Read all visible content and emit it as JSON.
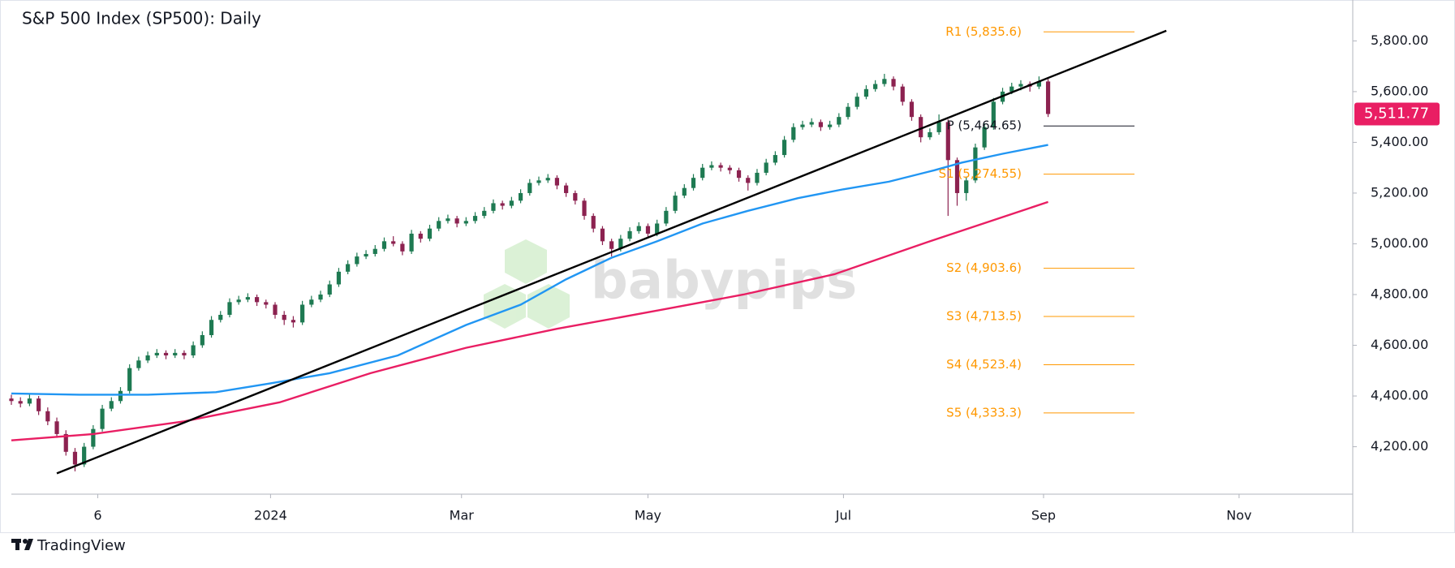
{
  "chart_data": {
    "type": "candlestick",
    "title": "S&P 500 Index (SP500): Daily",
    "watermark": "babypips",
    "footer": "TradingView",
    "up_color": "#1e7a52",
    "down_color": "#8c2250",
    "xlim": [
      0,
      295
    ],
    "xticks": [
      {
        "value": 19,
        "label": "6"
      },
      {
        "value": 57,
        "label": "2024"
      },
      {
        "value": 99,
        "label": "Mar"
      },
      {
        "value": 140,
        "label": "May"
      },
      {
        "value": 183,
        "label": "Jul"
      },
      {
        "value": 227,
        "label": "Sep"
      },
      {
        "value": 270,
        "label": "Nov"
      }
    ],
    "ylim": [
      4013,
      5942
    ],
    "yticks": [
      {
        "value": 4200,
        "label": "4,200.00"
      },
      {
        "value": 4400,
        "label": "4,400.00"
      },
      {
        "value": 4600,
        "label": "4,600.00"
      },
      {
        "value": 4800,
        "label": "4,800.00"
      },
      {
        "value": 5000,
        "label": "5,000.00"
      },
      {
        "value": 5200,
        "label": "5,200.00"
      },
      {
        "value": 5400,
        "label": "5,400.00"
      },
      {
        "value": 5600,
        "label": "5,600.00"
      },
      {
        "value": 5800,
        "label": "5,800.00"
      }
    ],
    "last_price": {
      "value": 5511.77,
      "label": "5,511.77"
    },
    "last_price_color": "#e91e63",
    "x": [
      0,
      2,
      4,
      6,
      8,
      10,
      12,
      14,
      16,
      18,
      20,
      22,
      24,
      26,
      28,
      30,
      32,
      34,
      36,
      38,
      40,
      42,
      44,
      46,
      48,
      50,
      52,
      54,
      56,
      58,
      60,
      62,
      64,
      66,
      68,
      70,
      72,
      74,
      76,
      78,
      80,
      82,
      84,
      86,
      88,
      90,
      92,
      94,
      96,
      98,
      100,
      102,
      104,
      106,
      108,
      110,
      112,
      114,
      116,
      118,
      120,
      122,
      124,
      126,
      128,
      130,
      132,
      134,
      136,
      138,
      140,
      142,
      144,
      146,
      148,
      150,
      152,
      154,
      156,
      158,
      160,
      162,
      164,
      166,
      168,
      170,
      172,
      174,
      176,
      178,
      180,
      182,
      184,
      186,
      188,
      190,
      192,
      194,
      196,
      198,
      200,
      202,
      204,
      206,
      208,
      210,
      212,
      214,
      216,
      218,
      220,
      222,
      224,
      226,
      228
    ],
    "ohlc": [
      [
        4390,
        4405,
        4365,
        4380
      ],
      [
        4380,
        4395,
        4355,
        4370
      ],
      [
        4370,
        4410,
        4360,
        4390
      ],
      [
        4390,
        4400,
        4325,
        4340
      ],
      [
        4340,
        4355,
        4285,
        4300
      ],
      [
        4300,
        4315,
        4235,
        4250
      ],
      [
        4250,
        4265,
        4165,
        4180
      ],
      [
        4180,
        4195,
        4103,
        4130
      ],
      [
        4130,
        4215,
        4120,
        4200
      ],
      [
        4200,
        4285,
        4190,
        4270
      ],
      [
        4270,
        4365,
        4260,
        4350
      ],
      [
        4350,
        4395,
        4340,
        4380
      ],
      [
        4380,
        4435,
        4370,
        4420
      ],
      [
        4420,
        4525,
        4410,
        4510
      ],
      [
        4510,
        4555,
        4500,
        4540
      ],
      [
        4540,
        4575,
        4530,
        4560
      ],
      [
        4560,
        4585,
        4550,
        4570
      ],
      [
        4570,
        4580,
        4545,
        4560
      ],
      [
        4560,
        4585,
        4550,
        4570
      ],
      [
        4570,
        4580,
        4545,
        4560
      ],
      [
        4560,
        4615,
        4550,
        4600
      ],
      [
        4600,
        4655,
        4590,
        4640
      ],
      [
        4640,
        4715,
        4630,
        4700
      ],
      [
        4700,
        4735,
        4690,
        4720
      ],
      [
        4720,
        4785,
        4710,
        4770
      ],
      [
        4770,
        4795,
        4760,
        4780
      ],
      [
        4780,
        4805,
        4770,
        4790
      ],
      [
        4790,
        4800,
        4755,
        4770
      ],
      [
        4770,
        4780,
        4745,
        4760
      ],
      [
        4760,
        4770,
        4705,
        4720
      ],
      [
        4720,
        4735,
        4680,
        4700
      ],
      [
        4700,
        4715,
        4670,
        4690
      ],
      [
        4690,
        4775,
        4680,
        4760
      ],
      [
        4760,
        4795,
        4750,
        4780
      ],
      [
        4780,
        4815,
        4770,
        4800
      ],
      [
        4800,
        4855,
        4790,
        4840
      ],
      [
        4840,
        4905,
        4830,
        4890
      ],
      [
        4890,
        4935,
        4880,
        4920
      ],
      [
        4920,
        4965,
        4910,
        4950
      ],
      [
        4950,
        4975,
        4940,
        4960
      ],
      [
        4960,
        4995,
        4950,
        4980
      ],
      [
        4980,
        5025,
        4970,
        5010
      ],
      [
        5010,
        5030,
        4990,
        5000
      ],
      [
        5000,
        5010,
        4955,
        4970
      ],
      [
        4970,
        5055,
        4960,
        5040
      ],
      [
        5040,
        5050,
        5005,
        5020
      ],
      [
        5020,
        5075,
        5010,
        5060
      ],
      [
        5060,
        5105,
        5050,
        5090
      ],
      [
        5090,
        5115,
        5080,
        5100
      ],
      [
        5100,
        5110,
        5065,
        5080
      ],
      [
        5080,
        5105,
        5070,
        5090
      ],
      [
        5090,
        5125,
        5080,
        5110
      ],
      [
        5110,
        5145,
        5100,
        5130
      ],
      [
        5130,
        5175,
        5120,
        5160
      ],
      [
        5160,
        5170,
        5135,
        5150
      ],
      [
        5150,
        5185,
        5140,
        5170
      ],
      [
        5170,
        5215,
        5160,
        5200
      ],
      [
        5200,
        5255,
        5190,
        5240
      ],
      [
        5240,
        5265,
        5230,
        5250
      ],
      [
        5250,
        5275,
        5240,
        5260
      ],
      [
        5260,
        5270,
        5215,
        5230
      ],
      [
        5230,
        5240,
        5185,
        5200
      ],
      [
        5200,
        5210,
        5155,
        5170
      ],
      [
        5170,
        5180,
        5095,
        5110
      ],
      [
        5110,
        5120,
        5045,
        5060
      ],
      [
        5060,
        5070,
        4995,
        5010
      ],
      [
        5010,
        5020,
        4950,
        4980
      ],
      [
        4980,
        5035,
        4970,
        5020
      ],
      [
        5020,
        5065,
        5010,
        5050
      ],
      [
        5050,
        5085,
        5040,
        5070
      ],
      [
        5070,
        5080,
        5025,
        5040
      ],
      [
        5040,
        5095,
        5030,
        5080
      ],
      [
        5080,
        5145,
        5070,
        5130
      ],
      [
        5130,
        5205,
        5120,
        5190
      ],
      [
        5190,
        5235,
        5180,
        5220
      ],
      [
        5220,
        5275,
        5210,
        5260
      ],
      [
        5260,
        5315,
        5250,
        5300
      ],
      [
        5300,
        5325,
        5290,
        5310
      ],
      [
        5310,
        5320,
        5285,
        5300
      ],
      [
        5300,
        5310,
        5275,
        5290
      ],
      [
        5290,
        5300,
        5245,
        5260
      ],
      [
        5260,
        5270,
        5210,
        5240
      ],
      [
        5240,
        5295,
        5230,
        5280
      ],
      [
        5280,
        5335,
        5270,
        5320
      ],
      [
        5320,
        5365,
        5310,
        5350
      ],
      [
        5350,
        5425,
        5340,
        5410
      ],
      [
        5410,
        5475,
        5400,
        5460
      ],
      [
        5460,
        5485,
        5450,
        5470
      ],
      [
        5470,
        5495,
        5460,
        5480
      ],
      [
        5480,
        5490,
        5445,
        5460
      ],
      [
        5460,
        5485,
        5450,
        5470
      ],
      [
        5470,
        5515,
        5460,
        5500
      ],
      [
        5500,
        5555,
        5490,
        5540
      ],
      [
        5540,
        5595,
        5530,
        5580
      ],
      [
        5580,
        5625,
        5570,
        5610
      ],
      [
        5610,
        5645,
        5600,
        5630
      ],
      [
        5630,
        5670,
        5620,
        5650
      ],
      [
        5650,
        5660,
        5605,
        5620
      ],
      [
        5620,
        5630,
        5545,
        5560
      ],
      [
        5560,
        5570,
        5485,
        5500
      ],
      [
        5500,
        5510,
        5400,
        5420
      ],
      [
        5420,
        5455,
        5410,
        5440
      ],
      [
        5440,
        5510,
        5430,
        5480
      ],
      [
        5480,
        5490,
        5110,
        5330
      ],
      [
        5330,
        5340,
        5150,
        5200
      ],
      [
        5200,
        5265,
        5170,
        5250
      ],
      [
        5250,
        5395,
        5240,
        5380
      ],
      [
        5380,
        5475,
        5370,
        5460
      ],
      [
        5460,
        5575,
        5450,
        5560
      ],
      [
        5560,
        5615,
        5550,
        5600
      ],
      [
        5600,
        5635,
        5590,
        5620
      ],
      [
        5620,
        5645,
        5605,
        5630
      ],
      [
        5630,
        5640,
        5600,
        5620
      ],
      [
        5620,
        5660,
        5610,
        5640
      ],
      [
        5640,
        5650,
        5500,
        5511.77
      ]
    ],
    "lines": [
      {
        "color": "#2196f3",
        "x": [
          0,
          15,
          30,
          45,
          57,
          70,
          85,
          100,
          112,
          122,
          132,
          142,
          152,
          162,
          173,
          183,
          193,
          203,
          209,
          218,
          228
        ],
        "values": [
          4410,
          4405,
          4405,
          4415,
          4450,
          4490,
          4560,
          4680,
          4760,
          4860,
          4945,
          5010,
          5080,
          5130,
          5180,
          5215,
          5245,
          5290,
          5320,
          5355,
          5390
        ]
      },
      {
        "color": "#e91e63",
        "x": [
          0,
          18,
          38,
          59,
          79,
          100,
          120,
          140,
          161,
          181,
          202,
          228
        ],
        "values": [
          4225,
          4250,
          4300,
          4375,
          4490,
          4590,
          4665,
          4730,
          4800,
          4880,
          5010,
          5165
        ]
      },
      {
        "color": "#000000",
        "x": [
          10,
          254
        ],
        "values": [
          4095,
          5840
        ]
      }
    ],
    "pivot_color": "#ff9800",
    "pivots": [
      {
        "label": "R1 (5,835.6)",
        "value": 5835.6
      },
      {
        "label": "P (5,464.65)",
        "value": 5464.65
      },
      {
        "label": "S1 (5,274.55)",
        "value": 5274.55
      },
      {
        "label": "S2 (4,903.6)",
        "value": 4903.6
      },
      {
        "label": "S3 (4,713.5)",
        "value": 4713.5
      },
      {
        "label": "S4 (4,523.4)",
        "value": 4523.4
      },
      {
        "label": "S5 (4,333.3)",
        "value": 4333.3
      }
    ]
  }
}
